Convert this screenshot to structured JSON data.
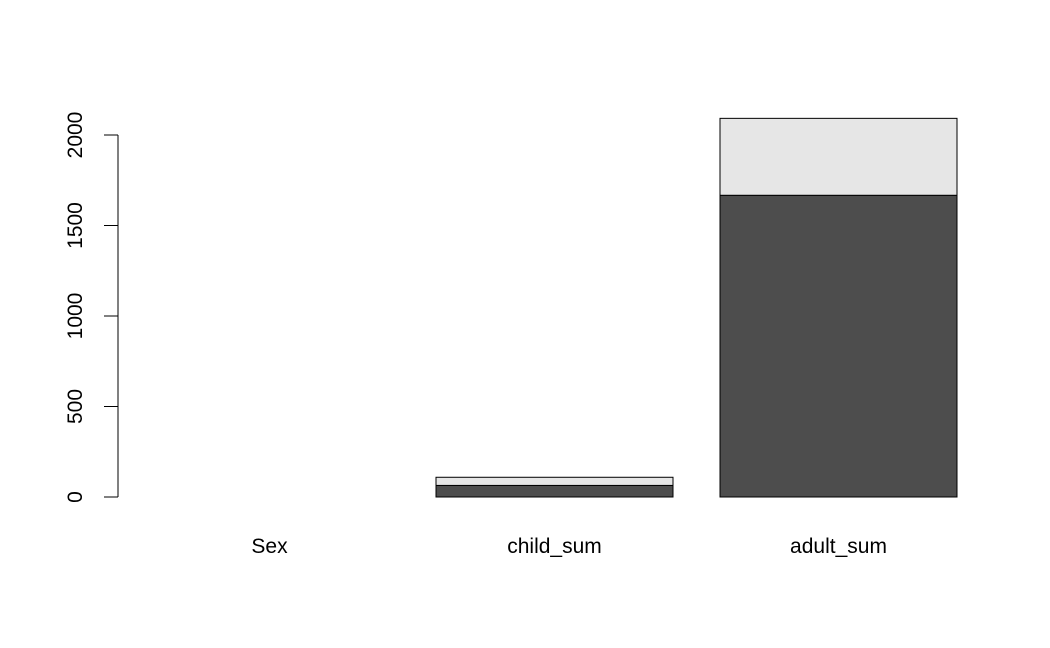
{
  "chart_data": {
    "type": "bar",
    "stacked": true,
    "categories": [
      "Sex",
      "child_sum",
      "adult_sum"
    ],
    "series": [
      {
        "color": "#4d4d4d",
        "values": [
          0,
          64,
          1667
        ]
      },
      {
        "color": "#e6e6e6",
        "values": [
          0,
          45,
          425
        ]
      }
    ],
    "ylim": [
      0,
      2000
    ],
    "yticks": [
      0,
      500,
      1000,
      1500,
      2000
    ],
    "title": "",
    "xlabel": "",
    "ylabel": "",
    "grid": false,
    "legend": "none"
  }
}
